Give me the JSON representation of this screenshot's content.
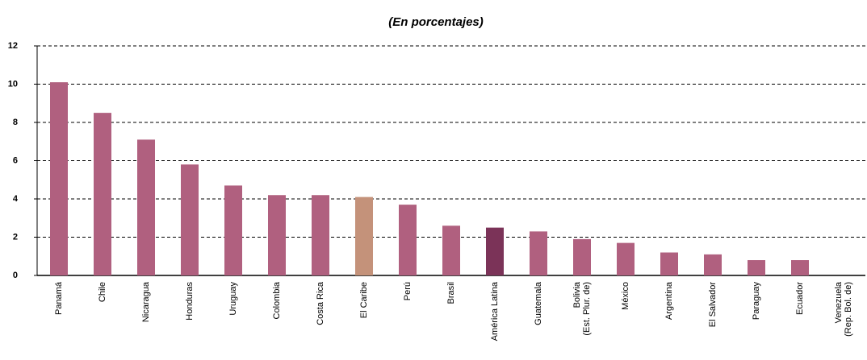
{
  "chart_data": {
    "type": "bar",
    "subtitle": "(En porcentajes)",
    "categories": [
      [
        "Panamá"
      ],
      [
        "Chile"
      ],
      [
        "Nicaragua"
      ],
      [
        "Honduras"
      ],
      [
        "Uruguay"
      ],
      [
        "Colombia"
      ],
      [
        "Costa Rica"
      ],
      [
        "El Caribe"
      ],
      [
        "Perú"
      ],
      [
        "Brasil"
      ],
      [
        "América Latina"
      ],
      [
        "Guatemala"
      ],
      [
        "Bolivia",
        "(Est. Plur. de)"
      ],
      [
        "México"
      ],
      [
        "Argentina"
      ],
      [
        "El Salvador"
      ],
      [
        "Paraguay"
      ],
      [
        "Ecuador"
      ],
      [
        "Venezuela",
        "(Rep. Bol. de)"
      ]
    ],
    "values": [
      10.1,
      8.5,
      7.1,
      5.8,
      4.7,
      4.2,
      4.2,
      4.1,
      3.7,
      2.6,
      2.5,
      2.3,
      1.9,
      1.7,
      1.2,
      1.1,
      0.8,
      0.8,
      0
    ],
    "colors": [
      "#b0607f",
      "#b0607f",
      "#b0607f",
      "#b0607f",
      "#b0607f",
      "#b0607f",
      "#b0607f",
      "#c4927a",
      "#b0607f",
      "#b0607f",
      "#7b3358",
      "#b0607f",
      "#b0607f",
      "#b0607f",
      "#b0607f",
      "#b0607f",
      "#b0607f",
      "#b0607f",
      "#b0607f"
    ],
    "ylim": [
      0,
      12
    ],
    "yticks": [
      0,
      2,
      4,
      6,
      8,
      10,
      12
    ],
    "grid": true
  }
}
